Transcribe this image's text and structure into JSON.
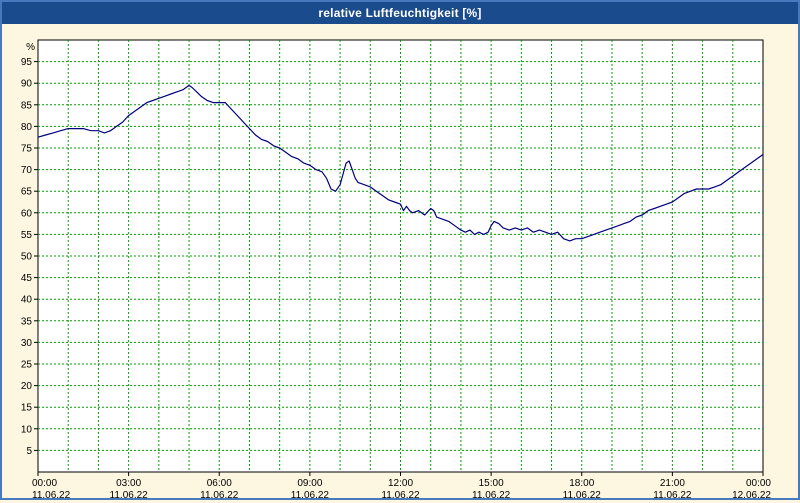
{
  "window": {
    "title": "relative Luftfeuchtigkeit [%]"
  },
  "colors": {
    "titlebar_bg": "#1a4b8c",
    "frame_border": "#4679bd",
    "page_bg": "#fdf7e1",
    "plot_bg": "#ffffff",
    "grid": "#00a000",
    "axis": "#000000",
    "line": "#00007e"
  },
  "chart_data": {
    "type": "line",
    "title": "relative Luftfeuchtigkeit [%]",
    "xlabel": "",
    "ylabel": "%",
    "ylim": [
      0,
      100
    ],
    "ytick_step": 5,
    "yticks": [
      5,
      10,
      15,
      20,
      25,
      30,
      35,
      40,
      45,
      50,
      55,
      60,
      65,
      70,
      75,
      80,
      85,
      90,
      95
    ],
    "x_hours_range": [
      0,
      24
    ],
    "grid": {
      "on": true,
      "dash": "2,2",
      "x_minor_every_hours": 1,
      "y_every": 5
    },
    "legend": {
      "visible": false
    },
    "xticks": [
      {
        "hour": 0,
        "time": "00:00",
        "date": "11.06.22"
      },
      {
        "hour": 3,
        "time": "03:00",
        "date": "11.06.22"
      },
      {
        "hour": 6,
        "time": "06:00",
        "date": "11.06.22"
      },
      {
        "hour": 9,
        "time": "09:00",
        "date": "11.06.22"
      },
      {
        "hour": 12,
        "time": "12:00",
        "date": "11.06.22"
      },
      {
        "hour": 15,
        "time": "15:00",
        "date": "11.06.22"
      },
      {
        "hour": 18,
        "time": "18:00",
        "date": "11.06.22"
      },
      {
        "hour": 21,
        "time": "21:00",
        "date": "11.06.22"
      },
      {
        "hour": 24,
        "time": "00:00",
        "date": "12.06.22"
      }
    ],
    "series": [
      {
        "name": "relative Luftfeuchtigkeit",
        "unit": "%",
        "color": "#00007e",
        "points": [
          [
            0.0,
            77.5
          ],
          [
            0.25,
            78
          ],
          [
            0.5,
            78.5
          ],
          [
            0.75,
            79
          ],
          [
            1.0,
            79.5
          ],
          [
            1.25,
            79.5
          ],
          [
            1.5,
            79.5
          ],
          [
            1.75,
            79
          ],
          [
            2.0,
            79
          ],
          [
            2.2,
            78.5
          ],
          [
            2.4,
            79
          ],
          [
            2.6,
            80
          ],
          [
            2.8,
            81
          ],
          [
            3.0,
            82.5
          ],
          [
            3.2,
            83.5
          ],
          [
            3.4,
            84.5
          ],
          [
            3.6,
            85.5
          ],
          [
            3.8,
            86
          ],
          [
            4.0,
            86.5
          ],
          [
            4.2,
            87
          ],
          [
            4.4,
            87.5
          ],
          [
            4.6,
            88
          ],
          [
            4.8,
            88.5
          ],
          [
            5.0,
            89.5
          ],
          [
            5.1,
            89
          ],
          [
            5.25,
            88
          ],
          [
            5.4,
            87
          ],
          [
            5.6,
            86
          ],
          [
            5.8,
            85.5
          ],
          [
            6.0,
            85.5
          ],
          [
            6.2,
            85.5
          ],
          [
            6.4,
            84
          ],
          [
            6.6,
            82.5
          ],
          [
            6.8,
            81
          ],
          [
            7.0,
            79.5
          ],
          [
            7.2,
            78
          ],
          [
            7.4,
            77
          ],
          [
            7.6,
            76.5
          ],
          [
            7.8,
            75.5
          ],
          [
            8.0,
            75
          ],
          [
            8.2,
            74
          ],
          [
            8.4,
            73
          ],
          [
            8.6,
            72.5
          ],
          [
            8.8,
            71.5
          ],
          [
            9.0,
            71
          ],
          [
            9.2,
            70
          ],
          [
            9.4,
            69.5
          ],
          [
            9.55,
            68
          ],
          [
            9.7,
            65.5
          ],
          [
            9.85,
            65
          ],
          [
            10.0,
            66.5
          ],
          [
            10.1,
            69
          ],
          [
            10.2,
            71.5
          ],
          [
            10.3,
            72
          ],
          [
            10.4,
            70
          ],
          [
            10.5,
            68
          ],
          [
            10.6,
            67
          ],
          [
            10.8,
            66.5
          ],
          [
            11.0,
            66
          ],
          [
            11.2,
            65
          ],
          [
            11.4,
            64
          ],
          [
            11.6,
            63
          ],
          [
            11.8,
            62.5
          ],
          [
            12.0,
            62
          ],
          [
            12.1,
            60.5
          ],
          [
            12.2,
            61.5
          ],
          [
            12.3,
            60.5
          ],
          [
            12.4,
            60
          ],
          [
            12.6,
            60.5
          ],
          [
            12.8,
            59.5
          ],
          [
            13.0,
            61
          ],
          [
            13.1,
            60.5
          ],
          [
            13.2,
            59
          ],
          [
            13.4,
            58.5
          ],
          [
            13.6,
            58
          ],
          [
            13.8,
            57
          ],
          [
            14.0,
            56
          ],
          [
            14.15,
            55.5
          ],
          [
            14.3,
            56
          ],
          [
            14.45,
            55
          ],
          [
            14.6,
            55.5
          ],
          [
            14.75,
            55
          ],
          [
            14.9,
            55.5
          ],
          [
            15.0,
            57
          ],
          [
            15.1,
            58
          ],
          [
            15.25,
            57.5
          ],
          [
            15.4,
            56.5
          ],
          [
            15.6,
            56
          ],
          [
            15.8,
            56.5
          ],
          [
            16.0,
            56
          ],
          [
            16.2,
            56.5
          ],
          [
            16.4,
            55.5
          ],
          [
            16.6,
            56
          ],
          [
            16.8,
            55.5
          ],
          [
            17.0,
            55
          ],
          [
            17.2,
            55.5
          ],
          [
            17.4,
            54
          ],
          [
            17.6,
            53.5
          ],
          [
            17.8,
            54
          ],
          [
            18.0,
            54
          ],
          [
            18.2,
            54.5
          ],
          [
            18.4,
            55
          ],
          [
            18.6,
            55.5
          ],
          [
            18.8,
            56
          ],
          [
            19.0,
            56.5
          ],
          [
            19.2,
            57
          ],
          [
            19.4,
            57.5
          ],
          [
            19.6,
            58
          ],
          [
            19.8,
            59
          ],
          [
            20.0,
            59.5
          ],
          [
            20.2,
            60.5
          ],
          [
            20.4,
            61
          ],
          [
            20.6,
            61.5
          ],
          [
            20.8,
            62
          ],
          [
            21.0,
            62.5
          ],
          [
            21.2,
            63.5
          ],
          [
            21.4,
            64.5
          ],
          [
            21.6,
            65
          ],
          [
            21.8,
            65.5
          ],
          [
            22.0,
            65.5
          ],
          [
            22.2,
            65.5
          ],
          [
            22.4,
            66
          ],
          [
            22.6,
            66.5
          ],
          [
            22.8,
            67.5
          ],
          [
            23.0,
            68.5
          ],
          [
            23.2,
            69.5
          ],
          [
            23.4,
            70.5
          ],
          [
            23.6,
            71.5
          ],
          [
            23.8,
            72.5
          ],
          [
            24.0,
            73.5
          ]
        ]
      }
    ]
  }
}
